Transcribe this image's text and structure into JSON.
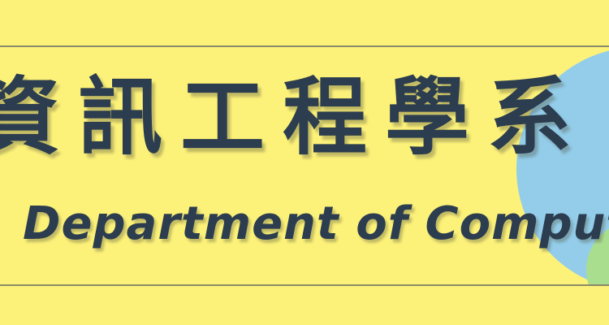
{
  "banner": {
    "title_zh": "資訊工程學系",
    "title_en": "Department of Computer"
  },
  "colors": {
    "background": "#fdf279",
    "text": "#2b3d4f",
    "circle_blue": "#93cdea",
    "circle_green": "#a9de8f",
    "border": "#8a8a6a"
  }
}
